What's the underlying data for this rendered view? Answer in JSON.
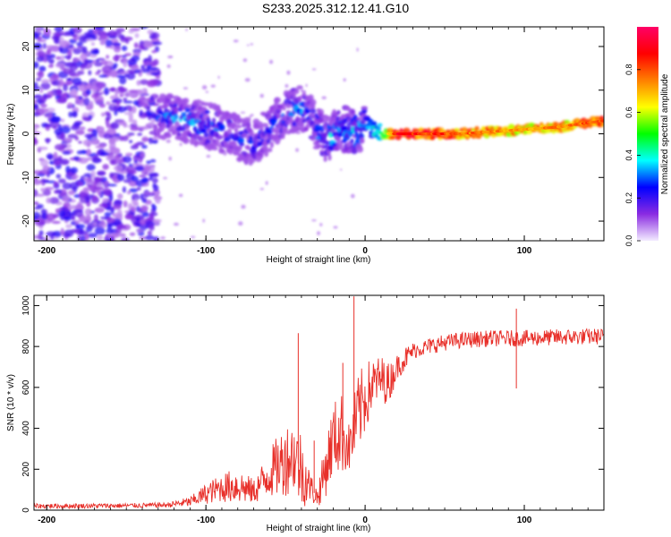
{
  "title": "S233.2025.312.12.41.G10",
  "chart_data": [
    {
      "type": "heatmap",
      "name": "spectrogram",
      "xlabel": "Height of straight line (km)",
      "ylabel": "Frequency (Hz)",
      "xlim": [
        -208,
        150
      ],
      "ylim": [
        -24.5,
        24.5
      ],
      "xticks": [
        -200,
        -100,
        0,
        100
      ],
      "yticks": [
        20,
        10,
        0,
        -10,
        -20
      ],
      "ridge": {
        "description": "peak-amplitude frequency vs height",
        "x": [
          -130,
          -120,
          -110,
          -100,
          -90,
          -80,
          -70,
          -60,
          -50,
          -40,
          -35,
          -30,
          -25,
          -20,
          -15,
          -10,
          -5,
          0,
          10,
          20,
          40,
          60,
          80,
          100,
          120,
          140,
          150
        ],
        "y": [
          4,
          4,
          3,
          2,
          1,
          -1,
          -2,
          1,
          5,
          6,
          4,
          1,
          -1,
          0,
          1,
          1,
          0,
          2,
          0,
          0,
          0,
          0,
          0.5,
          1,
          1.5,
          2.5,
          3
        ],
        "amplitude": [
          0.25,
          0.3,
          0.3,
          0.3,
          0.25,
          0.25,
          0.25,
          0.25,
          0.3,
          0.3,
          0.3,
          0.3,
          0.3,
          0.35,
          0.3,
          0.3,
          0.35,
          0.3,
          0.5,
          0.95,
          0.9,
          0.85,
          0.8,
          0.75,
          0.8,
          0.85,
          0.85
        ]
      },
      "noise_region": {
        "x": [
          -208,
          -130
        ],
        "y": [
          -24.5,
          24.5
        ],
        "amplitude": 0.2
      }
    },
    {
      "type": "colorbar",
      "name": "amplitude-scale",
      "label": "Normalized spectral amplitude",
      "range": [
        0,
        1
      ],
      "ticks": [
        "0.0",
        "0.2",
        "0.4",
        "0.6",
        "0.8"
      ],
      "colors": [
        "#f3ecff",
        "#8a2be2",
        "#0000ff",
        "#00ffff",
        "#00ff00",
        "#ffff00",
        "#ff7f00",
        "#ff0000",
        "#ff0066"
      ]
    },
    {
      "type": "line",
      "name": "snr",
      "xlabel": "Height of straight line (km)",
      "ylabel": "SNR (10 * v/v)",
      "xlim": [
        -208,
        150
      ],
      "ylim": [
        0,
        1050
      ],
      "xticks": [
        -200,
        -100,
        0,
        100
      ],
      "yticks": [
        0,
        200,
        400,
        600,
        800,
        1000
      ],
      "color": "#e8302a",
      "envelope": {
        "x": [
          -208,
          -150,
          -125,
          -110,
          -100,
          -90,
          -80,
          -70,
          -60,
          -50,
          -45,
          -40,
          -35,
          -30,
          -25,
          -20,
          -15,
          -10,
          -5,
          0,
          5,
          10,
          15,
          20,
          25,
          30,
          40,
          50,
          60,
          80,
          100,
          120,
          150
        ],
        "mean": [
          20,
          22,
          25,
          40,
          80,
          110,
          120,
          90,
          180,
          250,
          270,
          200,
          120,
          60,
          200,
          350,
          380,
          300,
          450,
          550,
          620,
          640,
          620,
          700,
          740,
          780,
          800,
          820,
          830,
          840,
          840,
          845,
          850
        ],
        "amplitude": [
          12,
          12,
          12,
          25,
          50,
          70,
          90,
          60,
          120,
          180,
          180,
          200,
          80,
          50,
          140,
          180,
          200,
          120,
          200,
          180,
          120,
          120,
          100,
          60,
          60,
          40,
          40,
          40,
          40,
          40,
          40,
          40,
          40
        ]
      },
      "spikes": [
        {
          "x": -42,
          "y": 865
        },
        {
          "x": -32,
          "y": 340
        },
        {
          "x": -14,
          "y": 720
        },
        {
          "x": -7,
          "y": 1045
        },
        {
          "x": 95,
          "y": 595
        },
        {
          "x": 95,
          "y": 985
        }
      ]
    }
  ]
}
